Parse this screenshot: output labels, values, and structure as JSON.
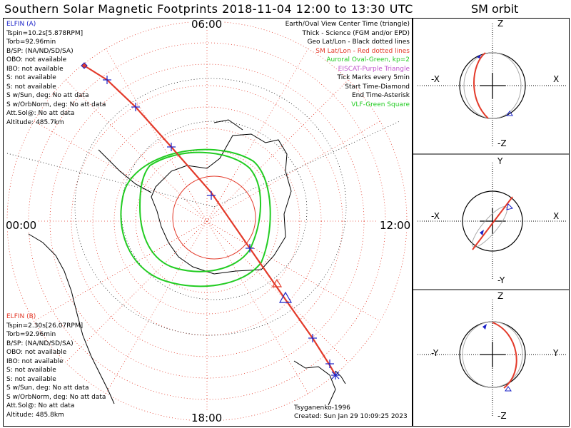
{
  "title": "Southern Solar Magnetic Footprints 2018-11-04 12:00 to 13:30 UTC",
  "orbit_title": "SM orbit",
  "hours": {
    "top": "06:00",
    "left": "00:00",
    "right": "12:00",
    "bottom": "18:00"
  },
  "elfin_a": {
    "name": "ELFIN (A)",
    "lines": [
      "Tspin=10.2s[5.878RPM]",
      "Torb=92.96min",
      "B/SP: (NA/ND/SD/SA)",
      "OBO: not available",
      "IBO: not available",
      "S: not available",
      "S: not available",
      "S w/Sun, deg: No att data",
      "S w/OrbNorm, deg: No att data",
      "Att.Sol@: No att data",
      "Altitude: 485.7km"
    ]
  },
  "elfin_b": {
    "name": "ELFIN (B)",
    "lines": [
      "Tspin=2.30s[26.07RPM]",
      "Torb=92.96min",
      "B/SP: (NA/ND/SD/SA)",
      "OBO: not available",
      "IBO: not available",
      "S: not available",
      "S: not available",
      "S w/Sun, deg: No att data",
      "S w/OrbNorm, deg: No att data",
      "Att.Sol@: No att data",
      "Altitude: 485.8km"
    ]
  },
  "legend": {
    "l1": "Earth/Oval View Center Time (triangle)",
    "l2": "Thick - Science (FGM and/or EPD)",
    "l3": "Geo Lat/Lon - Black dotted lines",
    "l4": "SM Lat/Lon - Red dotted lines",
    "l5": "Auroral Oval-Green, kp=2",
    "l6": "EISCAT-Purple Triangle",
    "l7": "Tick Marks every 5min",
    "l8": "Start Time-Diamond",
    "l9": "End Time-Asterisk",
    "l10": "VLF-Green Square"
  },
  "footer": {
    "model": "Tsyganenko-1996",
    "created": "Created: Sun Jan 29 10:09:25 2023"
  },
  "orbit_panels": [
    {
      "top": "Z",
      "bottom": "-Z",
      "left": "-X",
      "right": "X"
    },
    {
      "top": "Y",
      "bottom": "-Y",
      "left": "-X",
      "right": "X"
    },
    {
      "top": "Z",
      "bottom": "-Z",
      "left": "-Y",
      "right": "Y"
    }
  ],
  "colors": {
    "elfin_a": "#1a22c8",
    "elfin_b": "#e33a2a",
    "oval": "#22cc22",
    "grid_sm": "#e33a2a",
    "eiscat": "#c055cc"
  }
}
